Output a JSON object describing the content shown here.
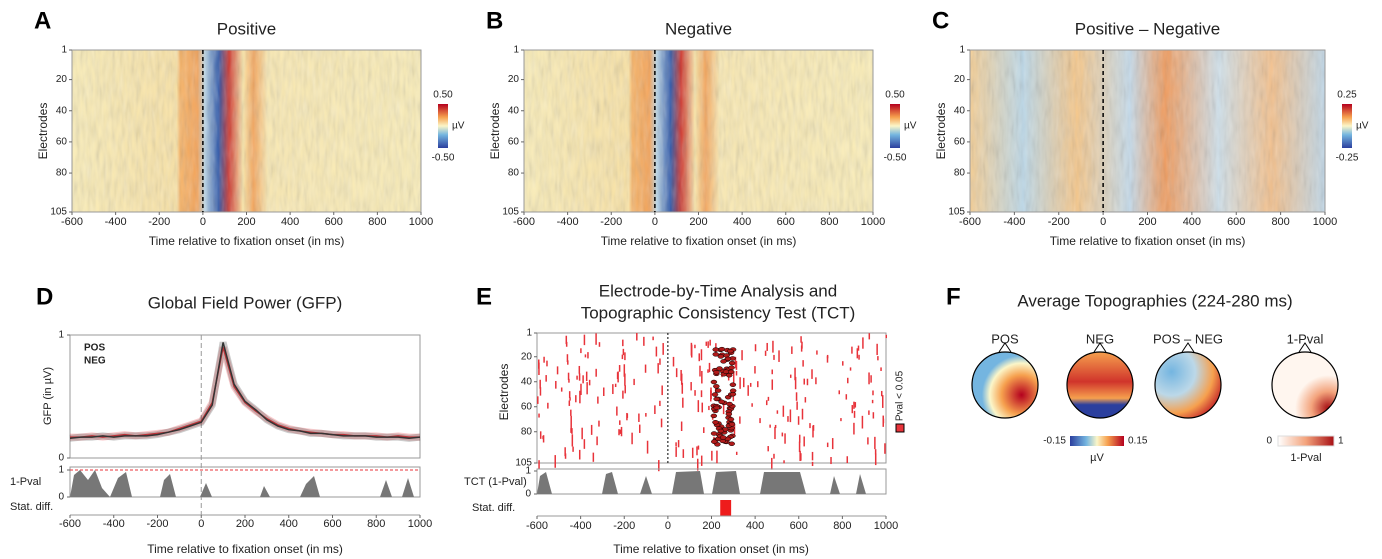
{
  "heatmaps": [
    {
      "letter": "A",
      "title": "Positive",
      "xlabel": "Time relative to fixation onset (in ms)",
      "ylabel": "Electrodes",
      "xlim": [
        -600,
        1000
      ],
      "xticks": [
        -600,
        -400,
        -200,
        0,
        200,
        400,
        600,
        800,
        1000
      ],
      "ylim": [
        1,
        105
      ],
      "yticks": [
        1,
        20,
        40,
        60,
        80,
        105
      ],
      "cbar_max": "0.50",
      "cbar_min": "-0.50",
      "cbar_unit": "µV"
    },
    {
      "letter": "B",
      "title": "Negative",
      "xlabel": "Time relative to fixation onset (in ms)",
      "ylabel": "Electrodes",
      "xlim": [
        -600,
        1000
      ],
      "xticks": [
        -600,
        -400,
        -200,
        0,
        200,
        400,
        600,
        800,
        1000
      ],
      "ylim": [
        1,
        105
      ],
      "yticks": [
        1,
        20,
        40,
        60,
        80,
        105
      ],
      "cbar_max": "0.50",
      "cbar_min": "-0.50",
      "cbar_unit": "µV"
    },
    {
      "letter": "C",
      "title": "Positive – Negative",
      "xlabel": "Time relative to fixation onset (in ms)",
      "ylabel": "Electrodes",
      "xlim": [
        -600,
        1000
      ],
      "xticks": [
        -600,
        -400,
        -200,
        0,
        200,
        400,
        600,
        800,
        1000
      ],
      "ylim": [
        1,
        105
      ],
      "yticks": [
        1,
        20,
        40,
        60,
        80,
        105
      ],
      "cbar_max": "0.25",
      "cbar_min": "-0.25",
      "cbar_unit": "µV"
    }
  ],
  "gfp": {
    "letter": "D",
    "title": "Global Field Power (GFP)",
    "ylabel": "GFP (in µV)",
    "ylim": [
      0,
      1
    ],
    "yticks": [
      0,
      1
    ],
    "xlim": [
      -600,
      1000
    ],
    "xticks": [
      -600,
      -400,
      -200,
      0,
      200,
      400,
      600,
      800,
      1000
    ],
    "xlabel": "Time relative to fixation onset (in ms)",
    "x": [
      -600,
      -550,
      -500,
      -450,
      -400,
      -350,
      -300,
      -250,
      -200,
      -150,
      -100,
      -50,
      0,
      50,
      100,
      150,
      200,
      250,
      300,
      350,
      400,
      450,
      500,
      550,
      600,
      650,
      700,
      750,
      800,
      850,
      900,
      950,
      1000
    ],
    "series": [
      {
        "name": "POS",
        "color": "#e8333a",
        "values": [
          0.17,
          0.17,
          0.18,
          0.17,
          0.18,
          0.19,
          0.18,
          0.19,
          0.2,
          0.21,
          0.24,
          0.27,
          0.3,
          0.45,
          0.9,
          0.58,
          0.45,
          0.38,
          0.32,
          0.27,
          0.24,
          0.22,
          0.21,
          0.2,
          0.19,
          0.19,
          0.18,
          0.18,
          0.18,
          0.17,
          0.18,
          0.17,
          0.17
        ]
      },
      {
        "name": "NEG",
        "color": "#333333",
        "values": [
          0.16,
          0.17,
          0.17,
          0.18,
          0.17,
          0.18,
          0.18,
          0.18,
          0.19,
          0.21,
          0.23,
          0.26,
          0.29,
          0.43,
          0.94,
          0.6,
          0.46,
          0.39,
          0.31,
          0.26,
          0.23,
          0.22,
          0.2,
          0.2,
          0.19,
          0.18,
          0.18,
          0.18,
          0.17,
          0.17,
          0.17,
          0.16,
          0.17
        ]
      }
    ],
    "pval_label": "1-Pval",
    "pval_ticks": [
      0,
      1
    ],
    "stat_label": "Stat. diff."
  },
  "tct": {
    "letter": "E",
    "title_line1": "Electrode-by-Time Analysis and",
    "title_line2": "Topographic Consistency Test (TCT)",
    "ylabel": "Electrodes",
    "yticks": [
      1,
      20,
      40,
      60,
      80,
      105
    ],
    "ylim": [
      1,
      105
    ],
    "cbar_label": "Pval < 0.05",
    "tct_label": "TCT (1-Pval)",
    "tct_ticks": [
      0,
      1
    ],
    "stat_label": "Stat. diff.",
    "sig_interval": [
      240,
      290
    ],
    "xlim": [
      -600,
      1000
    ],
    "xticks": [
      -600,
      -400,
      -200,
      0,
      200,
      400,
      600,
      800,
      1000
    ],
    "xlabel": "Time relative to fixation onset (in ms)"
  },
  "topo": {
    "letter": "F",
    "title": "Average Topographies (224-280 ms)",
    "heads": [
      "POS",
      "NEG",
      "POS – NEG",
      "1-Pval"
    ],
    "cbar1_min": "-0.15",
    "cbar1_max": "0.15",
    "cbar1_unit": "µV",
    "cbar2_min": "0",
    "cbar2_max": "1",
    "cbar2_label": "1-Pval"
  }
}
